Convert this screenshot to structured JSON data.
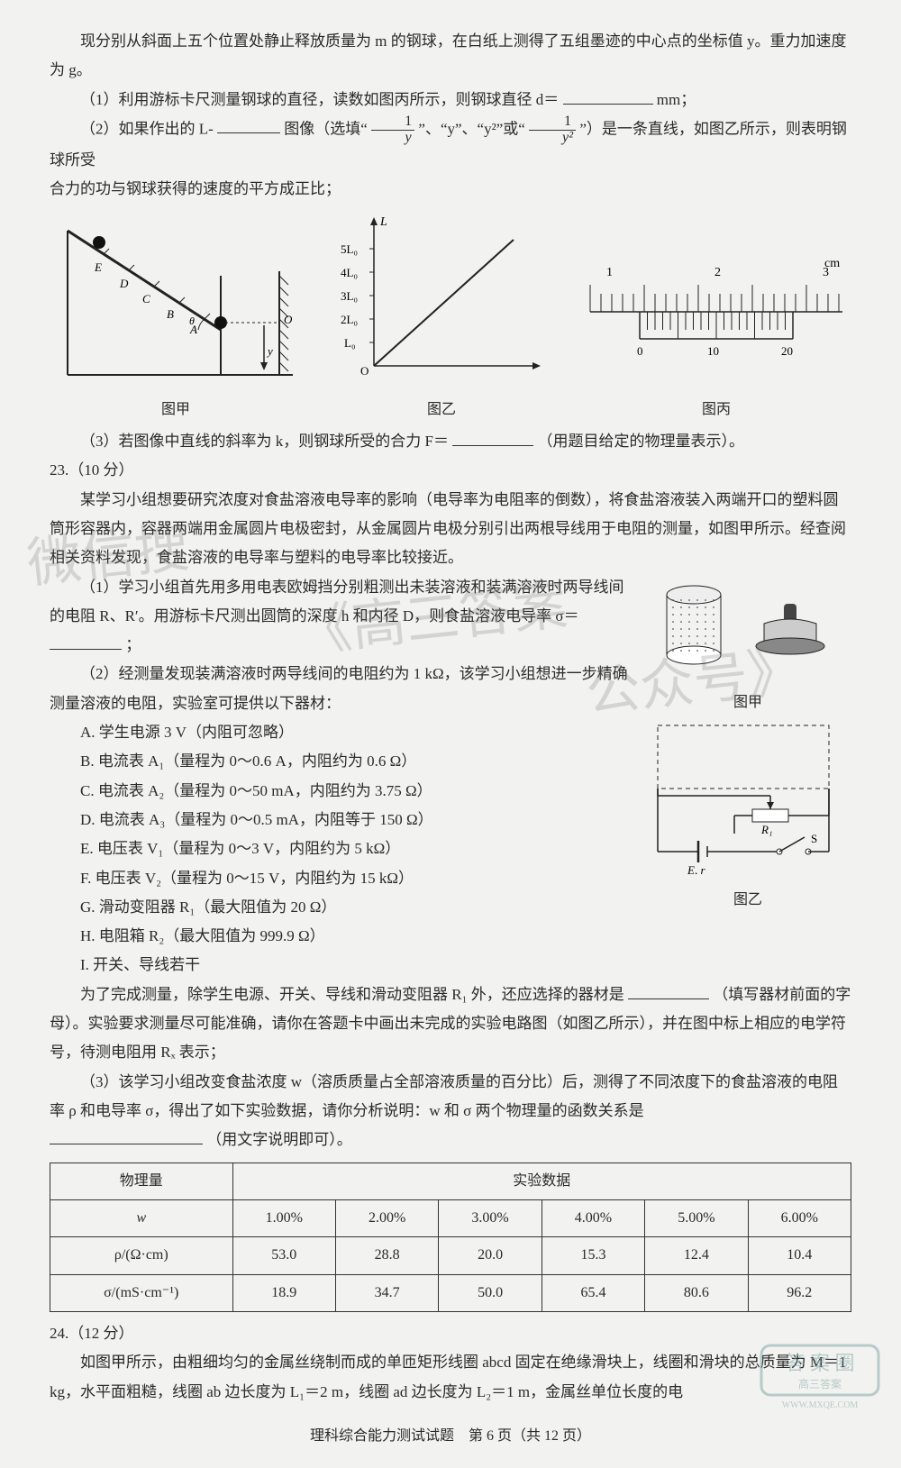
{
  "intro": "现分别从斜面上五个位置处静止释放质量为 m 的钢球，在白纸上测得了五组墨迹的中心点的坐标值 y。重力加速度为 g。",
  "q1_prefix": "（1）利用游标卡尺测量钢球的直径，读数如图丙所示，则钢球直径 d＝",
  "q1_unit": " mm；",
  "q2_prefix": "（2）如果作出的 L- ",
  "q2_mid1": " 图像（选填“",
  "q2_opt1_num": "1",
  "q2_opt1_den": "y",
  "q2_mid2": "”、“y”、“y²”或“",
  "q2_opt4_num": "1",
  "q2_opt4_den": "y²",
  "q2_mid3": "”）是一条直线，如图乙所示，则表明钢球所受",
  "q2_line2": "合力的功与钢球获得的速度的平方成正比；",
  "fig1_cap": "图甲",
  "fig2_cap": "图乙",
  "fig3_cap": "图丙",
  "fig2_ylabels": [
    "5L₀",
    "4L₀",
    "3L₀",
    "2L₀",
    "L₀",
    "O"
  ],
  "fig2_axY": "L",
  "fig3_top_marks": [
    "1",
    "2",
    "3"
  ],
  "fig3_bot_marks": [
    "0",
    "10",
    "20"
  ],
  "fig3_unit": "cm",
  "q3_prefix": "（3）若图像中直线的斜率为 k，则钢球所受的合力 F＝",
  "q3_suffix": "（用题目给定的物理量表示）。",
  "q23_head": "23.（10 分）",
  "q23_p1": "某学习小组想要研究浓度对食盐溶液电导率的影响（电导率为电阻率的倒数），将食盐溶液装入两端开口的塑料圆筒形容器内，容器两端用金属圆片电极密封，从金属圆片电极分别引出两根导线用于电阻的测量，如图甲所示。经查阅相关资料发现，食盐溶液的电导率与塑料的电导率比较接近。",
  "q23_p2a": "（1）学习小组首先用多用电表欧姆挡分别粗测出未装溶液和装满溶液时两导线间的电阻 R、R′。用游标卡尺测出圆筒的深度 h 和内径 D，则食盐溶液电导率 σ＝",
  "q23_p2b": "；",
  "q23_p3": "（2）经测量发现装满溶液时两导线间的电阻约为 1 kΩ，该学习小组想进一步精确测量溶液的电阻，实验室可提供以下器材：",
  "items": {
    "A": "A. 学生电源 3 V（内阻可忽略）",
    "B": "B. 电流表 A₁（量程为 0～0.6 A，内阻约为 0.6 Ω）",
    "C": "C. 电流表 A₂（量程为 0～50 mA，内阻约为 3.75 Ω）",
    "D": "D. 电流表 A₃（量程为 0～0.5 mA，内阻等于 150 Ω）",
    "E": "E. 电压表 V₁（量程为 0～3 V，内阻约为 5 kΩ）",
    "F": "F. 电压表 V₂（量程为 0～15 V，内阻约为 15 kΩ）",
    "G": "G. 滑动变阻器 R₁（最大阻值为 20 Ω）",
    "H": "H. 电阻箱 R₂（最大阻值为 999.9 Ω）",
    "I": "I. 开关、导线若干"
  },
  "q23_p4a": "为了完成测量，除学生电源、开关、导线和滑动变阻器 R₁ 外，还应选择的器材是",
  "q23_p4b": "（填写器材前面的字母）。实验要求测量尽可能准确，请你在答题卡中画出未完成的实验电路图（如图乙所示），并在图中标上相应的电学符号，待测电阻用 Rₓ 表示；",
  "q23_p5a": "（3）该学习小组改变食盐浓度 w（溶质质量占全部溶液质量的百分比）后，测得了不同浓度下的食盐溶液的电阻率 ρ 和电导率 σ，得出了如下实验数据，请你分析说明：w 和 σ 两个物理量的函数关系是",
  "q23_p5b": "（用文字说明即可）。",
  "table": {
    "head_qty": "物理量",
    "head_data": "实验数据",
    "rows_label": [
      "w",
      "ρ/(Ω·cm)",
      "σ/(mS·cm⁻¹)"
    ],
    "data": [
      [
        "1.00%",
        "2.00%",
        "3.00%",
        "4.00%",
        "5.00%",
        "6.00%"
      ],
      [
        "53.0",
        "28.8",
        "20.0",
        "15.3",
        "12.4",
        "10.4"
      ],
      [
        "18.9",
        "34.7",
        "50.0",
        "65.4",
        "80.6",
        "96.2"
      ]
    ]
  },
  "q24_head": "24.（12 分）",
  "q24_p1": "如图甲所示，由粗细均匀的金属丝绕制而成的单匝矩形线圈 abcd 固定在绝缘滑块上，线圈和滑块的总质量为 M＝1 kg，水平面粗糙，线圈 ab 边长度为 L₁＝2 m，线圈 ad 边长度为 L₂＝1 m，金属丝单位长度的电",
  "footer": "理科综合能力测试试题　第 6 页（共 12 页）",
  "circuit": {
    "R1": "R₁",
    "E": "E, r",
    "S": "S",
    "cap": "图乙",
    "cap1": "图甲"
  },
  "watermark": {
    "a": "微信搜",
    "b": "《高三答案",
    "c": "公众号》"
  },
  "stamp": {
    "l1": "答案",
    "l2": "高三答案",
    "l3": "WWW.MXQE.COM"
  },
  "colors": {
    "ink": "#2a2a2a",
    "paper": "#f2f2f0"
  }
}
